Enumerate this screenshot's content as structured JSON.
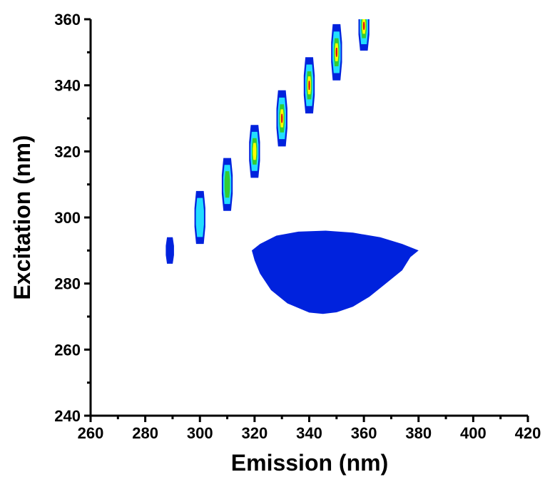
{
  "chart_data": {
    "type": "heatmap",
    "subtype": "contour",
    "title": "",
    "xlabel": "Emission (nm)",
    "ylabel": "Excitation (nm)",
    "xlim": [
      260,
      420
    ],
    "ylim": [
      240,
      360
    ],
    "x_ticks": [
      "260",
      "280",
      "300",
      "320",
      "340",
      "360",
      "380",
      "400",
      "420"
    ],
    "y_ticks": [
      "240",
      "260",
      "280",
      "300",
      "320",
      "340",
      "360"
    ],
    "grid": false,
    "legend": "none",
    "colors": {
      "level_1": "#0022dd",
      "level_2": "#22ddff",
      "level_3": "#33cc33",
      "level_4": "#ffff00",
      "level_5": "#dd1111"
    },
    "peaks": [
      {
        "emission": 289,
        "excitation": 290,
        "width": 3,
        "height": 8,
        "levels": 1
      },
      {
        "emission": 300,
        "excitation": 300,
        "width": 4,
        "height": 16,
        "levels": 2
      },
      {
        "emission": 310,
        "excitation": 310,
        "width": 4,
        "height": 16,
        "levels": 3
      },
      {
        "emission": 320,
        "excitation": 320,
        "width": 4,
        "height": 16,
        "levels": 4
      },
      {
        "emission": 330,
        "excitation": 330,
        "width": 4,
        "height": 17,
        "levels": 5
      },
      {
        "emission": 340,
        "excitation": 340,
        "width": 4,
        "height": 17,
        "levels": 5
      },
      {
        "emission": 350,
        "excitation": 350,
        "width": 4,
        "height": 17,
        "levels": 5
      },
      {
        "emission": 360,
        "excitation": 358,
        "width": 4,
        "height": 15,
        "levels": 5
      }
    ],
    "blob": {
      "level": 1,
      "outline": [
        [
          319,
          290
        ],
        [
          322,
          292
        ],
        [
          328,
          294.5
        ],
        [
          336,
          295.7
        ],
        [
          346,
          296
        ],
        [
          356,
          295.4
        ],
        [
          366,
          294
        ],
        [
          374,
          292
        ],
        [
          380,
          290
        ],
        [
          377,
          288
        ],
        [
          374,
          284
        ],
        [
          368,
          280
        ],
        [
          362,
          276
        ],
        [
          356,
          273
        ],
        [
          350,
          271.3
        ],
        [
          345,
          270.8
        ],
        [
          340,
          271.2
        ],
        [
          332,
          274
        ],
        [
          326,
          278
        ],
        [
          322,
          283
        ],
        [
          320,
          287
        ]
      ]
    }
  }
}
